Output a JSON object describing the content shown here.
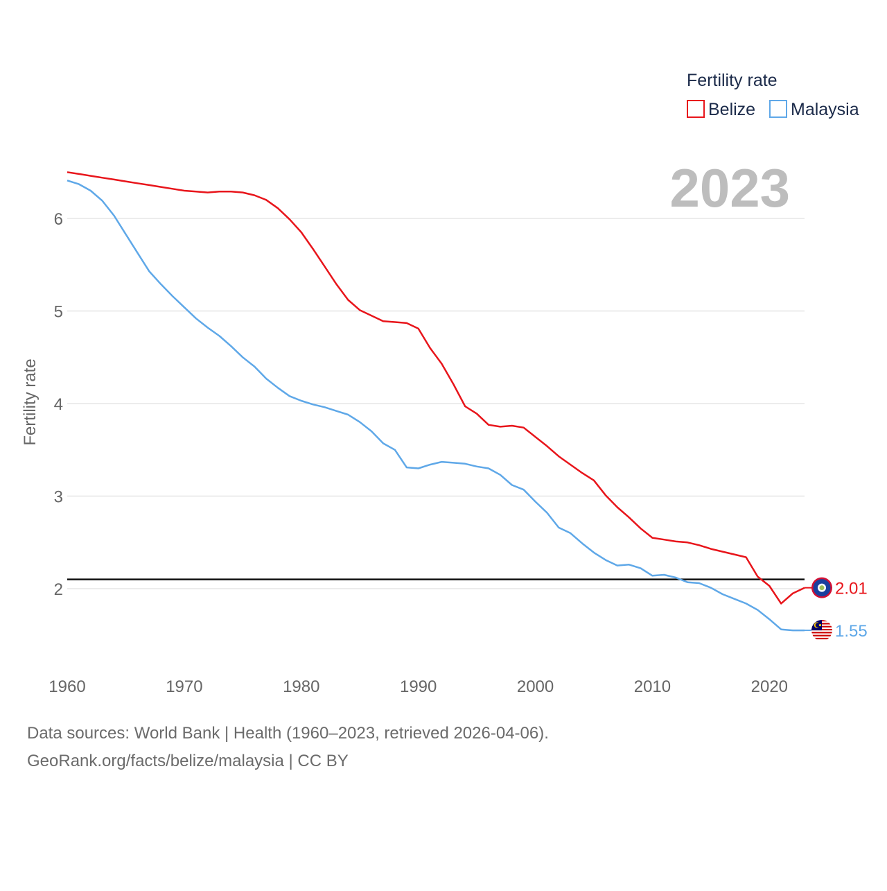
{
  "chart_data": {
    "type": "line",
    "ylabel": "Fertility rate",
    "xlabel": "",
    "xlim": [
      1960,
      2023
    ],
    "ylim": [
      1.2,
      6.6
    ],
    "x_ticks": [
      1960,
      1970,
      1980,
      1990,
      2000,
      2010,
      2020
    ],
    "y_ticks": [
      2,
      3,
      4,
      5,
      6
    ],
    "year_label": "2023",
    "reference_line": {
      "value": 2.1
    },
    "legend": {
      "title": "Fertility rate",
      "position": "top-right"
    },
    "x": [
      1960,
      1961,
      1962,
      1963,
      1964,
      1965,
      1966,
      1967,
      1968,
      1969,
      1970,
      1971,
      1972,
      1973,
      1974,
      1975,
      1976,
      1977,
      1978,
      1979,
      1980,
      1981,
      1982,
      1983,
      1984,
      1985,
      1986,
      1987,
      1988,
      1989,
      1990,
      1991,
      1992,
      1993,
      1994,
      1995,
      1996,
      1997,
      1998,
      1999,
      2000,
      2001,
      2002,
      2003,
      2004,
      2005,
      2006,
      2007,
      2008,
      2009,
      2010,
      2011,
      2012,
      2013,
      2014,
      2015,
      2016,
      2017,
      2018,
      2019,
      2020,
      2021,
      2022,
      2023
    ],
    "series": [
      {
        "name": "Belize",
        "color": "#e8151b",
        "end_label": "2.01",
        "flag": "belize-flag",
        "values": [
          6.5,
          6.48,
          6.46,
          6.44,
          6.42,
          6.4,
          6.38,
          6.36,
          6.34,
          6.32,
          6.3,
          6.29,
          6.28,
          6.29,
          6.29,
          6.28,
          6.25,
          6.2,
          6.11,
          5.99,
          5.85,
          5.67,
          5.48,
          5.29,
          5.12,
          5.01,
          4.95,
          4.89,
          4.88,
          4.87,
          4.81,
          4.6,
          4.43,
          4.21,
          3.97,
          3.89,
          3.77,
          3.75,
          3.76,
          3.74,
          3.64,
          3.54,
          3.43,
          3.34,
          3.25,
          3.17,
          3.01,
          2.88,
          2.77,
          2.65,
          2.55,
          2.53,
          2.51,
          2.5,
          2.47,
          2.43,
          2.4,
          2.37,
          2.34,
          2.13,
          2.03,
          1.84,
          1.95,
          2.01
        ]
      },
      {
        "name": "Malaysia",
        "color": "#5fa8e8",
        "end_label": "1.55",
        "flag": "malaysia-flag",
        "values": [
          6.41,
          6.37,
          6.3,
          6.19,
          6.03,
          5.83,
          5.63,
          5.43,
          5.29,
          5.16,
          5.04,
          4.92,
          4.82,
          4.73,
          4.62,
          4.5,
          4.4,
          4.27,
          4.17,
          4.08,
          4.03,
          3.99,
          3.96,
          3.92,
          3.88,
          3.8,
          3.7,
          3.57,
          3.5,
          3.31,
          3.3,
          3.34,
          3.37,
          3.36,
          3.35,
          3.32,
          3.3,
          3.23,
          3.12,
          3.07,
          2.94,
          2.82,
          2.66,
          2.6,
          2.49,
          2.39,
          2.31,
          2.25,
          2.26,
          2.22,
          2.14,
          2.15,
          2.12,
          2.07,
          2.06,
          2.01,
          1.94,
          1.89,
          1.84,
          1.77,
          1.67,
          1.56,
          1.55,
          1.55
        ]
      }
    ]
  },
  "footer": {
    "source": "Data sources: World Bank | Health (1960–2023, retrieved 2026-04-06).",
    "credit": "GeoRank.org/facts/belize/malaysia | CC BY"
  }
}
